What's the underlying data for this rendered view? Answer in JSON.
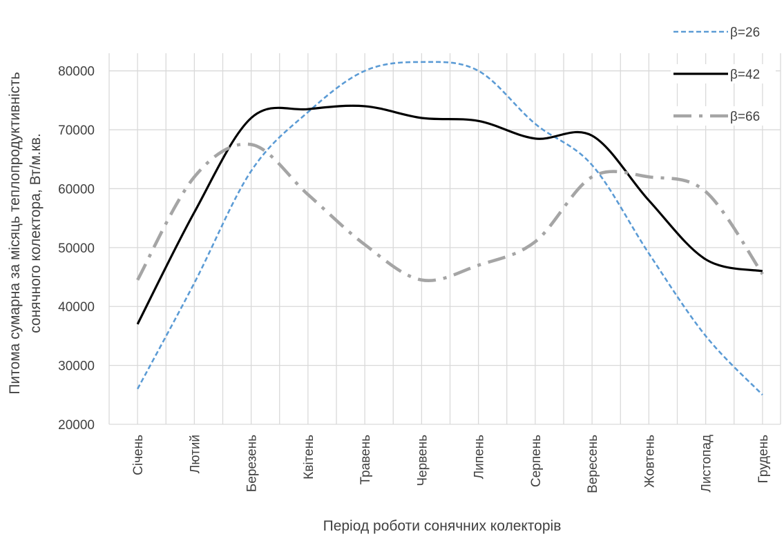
{
  "chart_data": {
    "type": "line",
    "title": "",
    "xlabel": "Період роботи сонячних колекторів",
    "ylabel_line1": "Питома сумарна за місяць теплопродуктивність",
    "ylabel_line2": "сонячного колектора, Вт/м.кв.",
    "categories": [
      "Січень",
      "Лютий",
      "Березень",
      "Квітень",
      "Травень",
      "Червень",
      "Липень",
      "Серпень",
      "Вересень",
      "Жовтень",
      "Листопад",
      "Грудень"
    ],
    "ylim": [
      20000,
      85000
    ],
    "yticks": [
      "20000",
      "30000",
      "40000",
      "50000",
      "60000",
      "70000",
      "80000"
    ],
    "grid": true,
    "legend_position": "top-right",
    "series": [
      {
        "name": "β=26",
        "color": "#5B9BD5",
        "style": "dashed",
        "values": [
          26000,
          44000,
          63000,
          73000,
          80000,
          81500,
          80000,
          71000,
          64000,
          49000,
          35000,
          25000
        ]
      },
      {
        "name": "β=42",
        "color": "#000000",
        "style": "solid",
        "values": [
          37000,
          56000,
          72000,
          73500,
          74000,
          72000,
          71500,
          68500,
          69000,
          58000,
          48000,
          46000
        ]
      },
      {
        "name": "β=66",
        "color": "#A5A5A5",
        "style": "dash-dot",
        "values": [
          44500,
          62000,
          67500,
          59000,
          50500,
          44500,
          47000,
          51000,
          62000,
          62000,
          59500,
          45500
        ]
      }
    ]
  }
}
